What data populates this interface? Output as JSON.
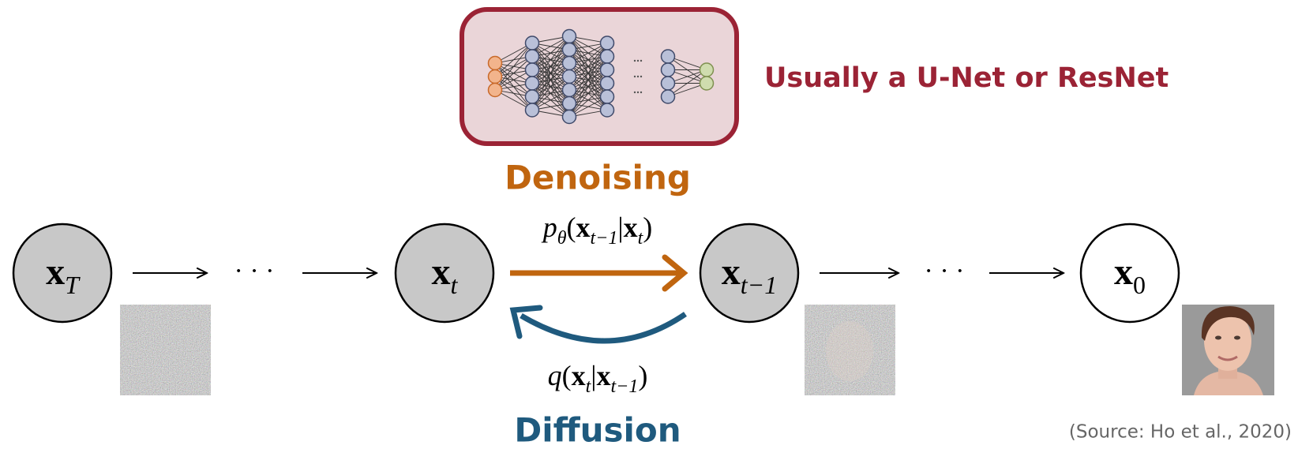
{
  "network": {
    "caption": "Usually a U-Net or ResNet"
  },
  "nodes": [
    {
      "label": "x",
      "sub": "T"
    },
    {
      "label": "x",
      "sub": "t"
    },
    {
      "label": "x",
      "sub": "t−1"
    },
    {
      "label": "x",
      "sub": "0"
    }
  ],
  "arrows": {
    "ellipsis": [
      "· · ·",
      "· · ·"
    ]
  },
  "denoising": {
    "title": "Denoising",
    "formula": [
      {
        "italic": "p"
      },
      {
        "sub": "θ"
      },
      {
        "text": "("
      },
      {
        "bold": "x"
      },
      {
        "sub": "t−1"
      },
      {
        "text": "|"
      },
      {
        "bold": "x"
      },
      {
        "sub": "t"
      },
      {
        "text": ")"
      }
    ]
  },
  "diffusion": {
    "title": "Diffusion",
    "formula": [
      {
        "italic": "q"
      },
      {
        "text": "("
      },
      {
        "bold": "x"
      },
      {
        "sub": "t"
      },
      {
        "text": "|"
      },
      {
        "bold": "x"
      },
      {
        "sub": "t−1"
      },
      {
        "text": ")"
      }
    ]
  },
  "source": "(Source: Ho et al., 2020)"
}
